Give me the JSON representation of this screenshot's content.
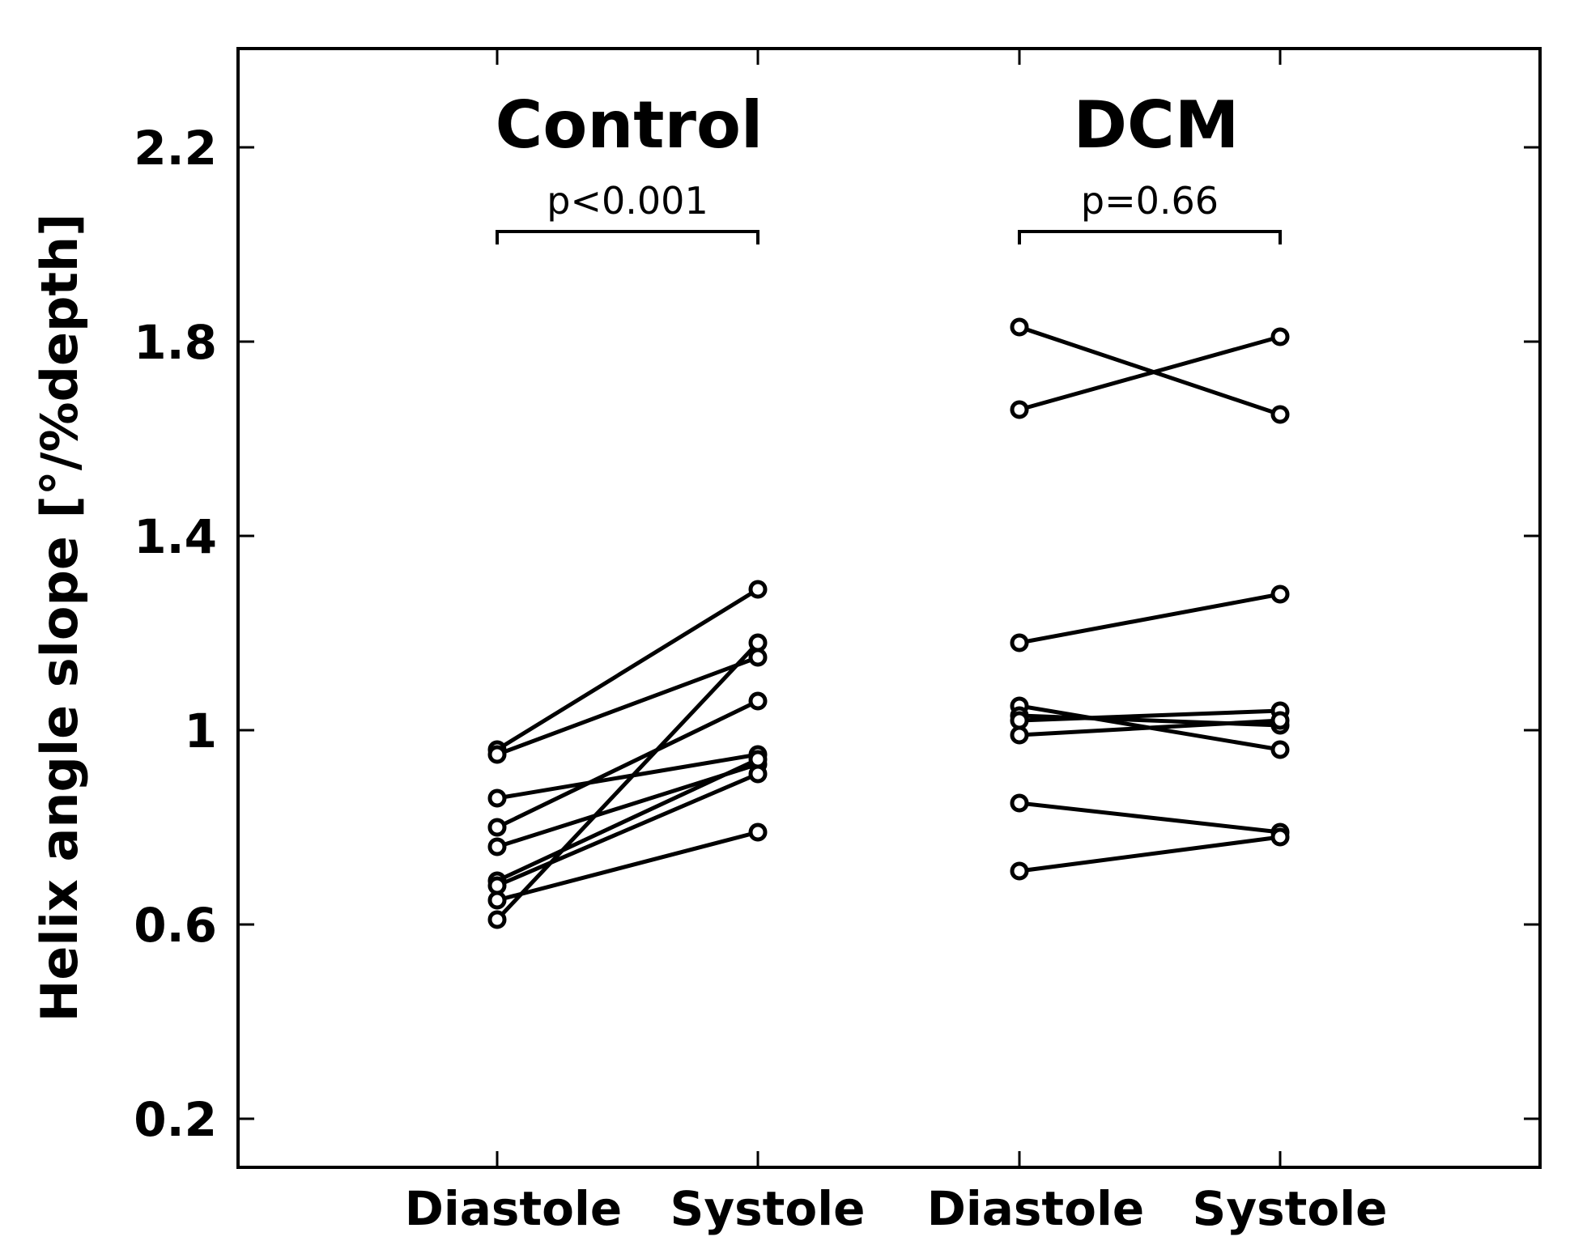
{
  "chart_data": {
    "type": "line",
    "ylabel": "Helix angle slope [°/%depth]",
    "xlabel": "",
    "ylim": [
      0.0,
      2.4
    ],
    "yticks": [
      "2.2",
      "1.8",
      "1.4",
      "1",
      "0.6",
      "0.2"
    ],
    "x_categories": [
      "Diastole",
      "Systole",
      "Diastole",
      "Systole"
    ],
    "groups": [
      {
        "name": "Control",
        "p_value": "p<0.001",
        "pairs": [
          {
            "diastole": 0.96,
            "systole": 1.29
          },
          {
            "diastole": 0.95,
            "systole": 1.15
          },
          {
            "diastole": 0.86,
            "systole": 0.95
          },
          {
            "diastole": 0.8,
            "systole": 1.06
          },
          {
            "diastole": 0.76,
            "systole": 0.93
          },
          {
            "diastole": 0.69,
            "systole": 0.94
          },
          {
            "diastole": 0.68,
            "systole": 0.91
          },
          {
            "diastole": 0.65,
            "systole": 0.79
          },
          {
            "diastole": 0.61,
            "systole": 1.18
          }
        ]
      },
      {
        "name": "DCM",
        "p_value": "p=0.66",
        "pairs": [
          {
            "diastole": 1.83,
            "systole": 1.65
          },
          {
            "diastole": 1.66,
            "systole": 1.81
          },
          {
            "diastole": 1.18,
            "systole": 1.28
          },
          {
            "diastole": 1.05,
            "systole": 0.96
          },
          {
            "diastole": 1.03,
            "systole": 1.01
          },
          {
            "diastole": 1.02,
            "systole": 1.04
          },
          {
            "diastole": 0.99,
            "systole": 1.02
          },
          {
            "diastole": 0.85,
            "systole": 0.79
          },
          {
            "diastole": 0.71,
            "systole": 0.78
          }
        ]
      }
    ]
  }
}
